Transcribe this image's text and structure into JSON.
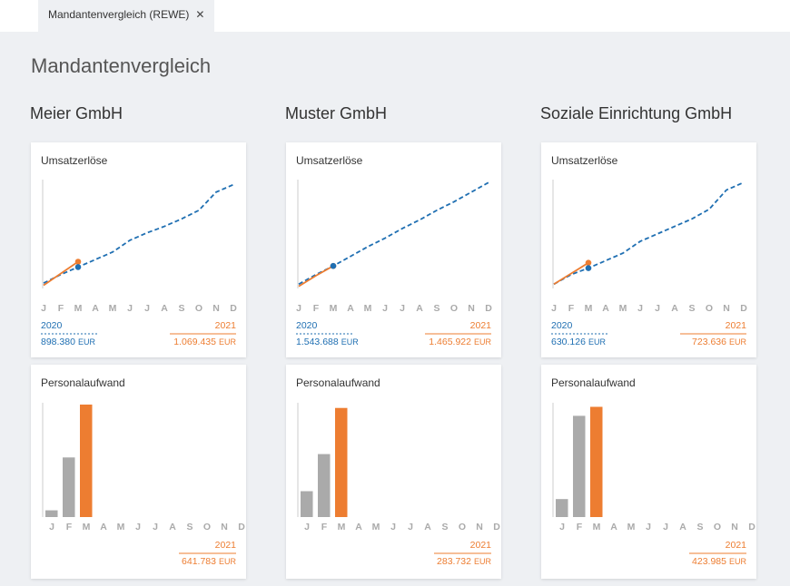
{
  "tab": {
    "label": "Mandantenvergleich (REWE)",
    "close": "✕"
  },
  "title": "Mandantenvergleich",
  "months": [
    "J",
    "F",
    "M",
    "A",
    "M",
    "J",
    "J",
    "A",
    "S",
    "O",
    "N",
    "D"
  ],
  "colors": {
    "prior": "#1f6fb2",
    "current": "#ed7d31",
    "past_bar": "#aaaaaa"
  },
  "companies": [
    {
      "name": "Meier GmbH",
      "revenue": {
        "title": "Umsatzerlöse",
        "ylim": [
          0,
          100
        ],
        "series": [
          {
            "name": "2020",
            "values": [
              5,
              13,
              20,
              27,
              34,
              45,
              52,
              58,
              65,
              73,
              90,
              97
            ],
            "total": "898.380",
            "unit": "EUR"
          },
          {
            "name": "2021",
            "values": [
              3,
              14,
              25
            ],
            "total": "1.069.435",
            "unit": "EUR"
          }
        ]
      },
      "personnel": {
        "title": "Personalaufwand",
        "ylim": [
          0,
          100
        ],
        "values": [
          6,
          53,
          100
        ],
        "name": "2021",
        "total": "641.783",
        "unit": "EUR"
      }
    },
    {
      "name": "Muster GmbH",
      "revenue": {
        "title": "Umsatzerlöse",
        "ylim": [
          0,
          100
        ],
        "series": [
          {
            "name": "2020",
            "values": [
              4,
              13,
              21,
              30,
              39,
              47,
              56,
              64,
              73,
              81,
              90,
              99
            ],
            "total": "1.543.688",
            "unit": "EUR"
          },
          {
            "name": "2021",
            "values": [
              2,
              12,
              21
            ],
            "total": "1.465.922",
            "unit": "EUR"
          }
        ]
      },
      "personnel": {
        "title": "Personalaufwand",
        "ylim": [
          0,
          100
        ],
        "values": [
          23,
          56,
          97
        ],
        "name": "2021",
        "total": "283.732",
        "unit": "EUR"
      }
    },
    {
      "name": "Soziale Einrichtung GmbH",
      "revenue": {
        "title": "Umsatzerlöse",
        "ylim": [
          0,
          100
        ],
        "series": [
          {
            "name": "2020",
            "values": [
              4,
              13,
              19,
              26,
              33,
              44,
              51,
              58,
              65,
              74,
              92,
              99
            ],
            "total": "630.126",
            "unit": "EUR"
          },
          {
            "name": "2021",
            "values": [
              4,
              14,
              24
            ],
            "total": "723.636",
            "unit": "EUR"
          }
        ]
      },
      "personnel": {
        "title": "Personalaufwand",
        "ylim": [
          0,
          100
        ],
        "values": [
          16,
          90,
          98
        ],
        "name": "2021",
        "total": "423.985",
        "unit": "EUR"
      }
    }
  ]
}
